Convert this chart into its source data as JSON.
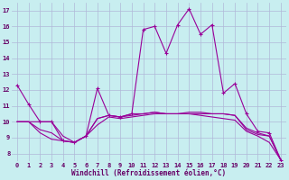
{
  "xlabel": "Windchill (Refroidissement éolien,°C)",
  "bg_color": "#c8eef0",
  "grid_color": "#b0b8d8",
  "line_color": "#990099",
  "xlim": [
    -0.5,
    23.5
  ],
  "ylim": [
    7.5,
    17.5
  ],
  "xticks": [
    0,
    1,
    2,
    3,
    4,
    5,
    6,
    7,
    8,
    9,
    10,
    11,
    12,
    13,
    14,
    15,
    16,
    17,
    18,
    19,
    20,
    21,
    22,
    23
  ],
  "yticks": [
    8,
    9,
    10,
    11,
    12,
    13,
    14,
    15,
    16,
    17
  ],
  "curve1_x": [
    0,
    1,
    2,
    3,
    4,
    5,
    6,
    7,
    8,
    9,
    10,
    11,
    12,
    13,
    14,
    15,
    16,
    17,
    18,
    19,
    20,
    21,
    22,
    23
  ],
  "curve1_y": [
    12.3,
    11.1,
    10.0,
    10.0,
    8.8,
    8.7,
    9.1,
    12.1,
    10.4,
    10.3,
    10.5,
    15.8,
    16.0,
    14.3,
    16.1,
    17.1,
    15.5,
    16.1,
    11.8,
    12.4,
    10.5,
    9.4,
    9.3,
    7.6
  ],
  "curve1_markers": [
    0,
    1,
    2,
    3,
    4,
    5,
    6,
    7,
    8,
    9,
    10,
    11,
    12,
    13,
    14,
    15,
    16,
    17,
    18,
    19,
    20,
    21,
    22,
    23
  ],
  "curve2_x": [
    0,
    1,
    2,
    3,
    4,
    5,
    6,
    7,
    8,
    9,
    10,
    11,
    12,
    13,
    14,
    15,
    16,
    17,
    18,
    19,
    20,
    21,
    22,
    23
  ],
  "curve2_y": [
    10.0,
    10.0,
    10.0,
    10.0,
    9.1,
    8.7,
    9.1,
    10.2,
    10.4,
    10.3,
    10.5,
    10.5,
    10.6,
    10.5,
    10.5,
    10.6,
    10.6,
    10.5,
    10.5,
    10.4,
    9.6,
    9.3,
    9.1,
    7.6
  ],
  "curve3_x": [
    0,
    1,
    2,
    3,
    4,
    5,
    6,
    7,
    8,
    9,
    10,
    11,
    12,
    13,
    14,
    15,
    16,
    17,
    18,
    19,
    20,
    21,
    22,
    23
  ],
  "curve3_y": [
    10.0,
    10.0,
    9.5,
    9.3,
    8.8,
    8.7,
    9.1,
    10.2,
    10.4,
    10.3,
    10.4,
    10.5,
    10.6,
    10.5,
    10.5,
    10.5,
    10.5,
    10.5,
    10.5,
    10.4,
    9.5,
    9.2,
    9.1,
    7.6
  ],
  "curve4_x": [
    0,
    1,
    2,
    3,
    4,
    5,
    6,
    7,
    8,
    9,
    10,
    11,
    12,
    13,
    14,
    15,
    16,
    17,
    18,
    19,
    20,
    21,
    22,
    23
  ],
  "curve4_y": [
    10.0,
    10.0,
    9.3,
    8.9,
    8.8,
    8.7,
    9.1,
    9.8,
    10.3,
    10.2,
    10.3,
    10.4,
    10.5,
    10.5,
    10.5,
    10.5,
    10.4,
    10.3,
    10.2,
    10.1,
    9.4,
    9.1,
    8.7,
    7.6
  ]
}
